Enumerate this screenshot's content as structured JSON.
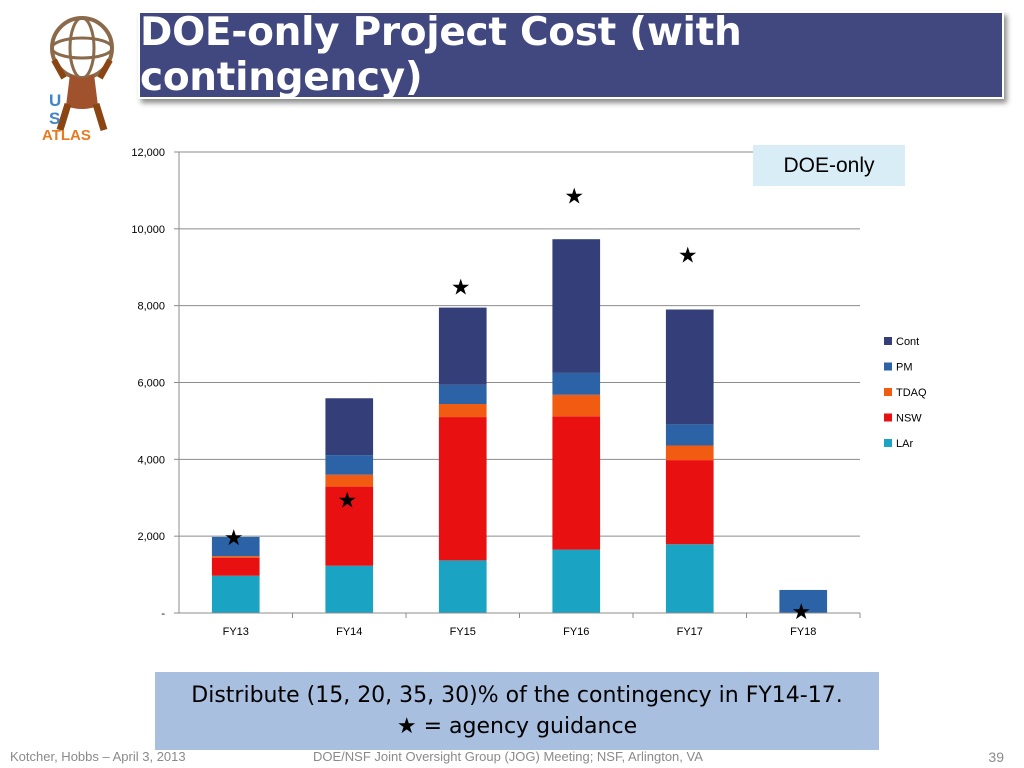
{
  "slide": {
    "title": "DOE-only Project Cost (with contingency)",
    "tag": "DOE-only",
    "note_line1": "Distribute (15, 20, 35, 30)% of the contingency in FY14-17.",
    "note_star": "★",
    "note_line2": " = agency guidance",
    "footer_left": "Kotcher, Hobbs – April 3, 2013",
    "footer_mid": "DOE/NSF Joint Oversight Group (JOG) Meeting; NSF, Arlington, VA",
    "page_number": "39",
    "logo": {
      "letter_u": "U",
      "letter_s": "S",
      "word": "ATLAS"
    }
  },
  "chart_data": {
    "type": "bar",
    "stacked": true,
    "categories": [
      "FY13",
      "FY14",
      "FY15",
      "FY16",
      "FY17",
      "FY18"
    ],
    "series": [
      {
        "name": "LAr",
        "color": "#1aa3c3",
        "values": [
          970,
          1230,
          1370,
          1650,
          1790,
          0
        ]
      },
      {
        "name": "NSW",
        "color": "#e81010",
        "values": [
          470,
          2060,
          3730,
          3470,
          2190,
          0
        ]
      },
      {
        "name": "TDAQ",
        "color": "#f25c12",
        "values": [
          40,
          310,
          340,
          560,
          380,
          0
        ]
      },
      {
        "name": "PM",
        "color": "#2c63a6",
        "values": [
          500,
          510,
          500,
          570,
          550,
          600
        ]
      },
      {
        "name": "Cont",
        "color": "#343e78",
        "values": [
          0,
          1480,
          2010,
          3480,
          2990,
          0
        ]
      }
    ],
    "guidance": [
      1980,
      2950,
      8500,
      10870,
      9330,
      50
    ],
    "guidance_symbol": "★",
    "ylim": [
      0,
      12000
    ],
    "yticks": [
      0,
      2000,
      4000,
      6000,
      8000,
      10000,
      12000
    ],
    "ytick_labels": [
      "-",
      "2,000",
      "4,000",
      "6,000",
      "8,000",
      "10,000",
      "12,000"
    ],
    "legend_position": "right",
    "grid": true
  }
}
